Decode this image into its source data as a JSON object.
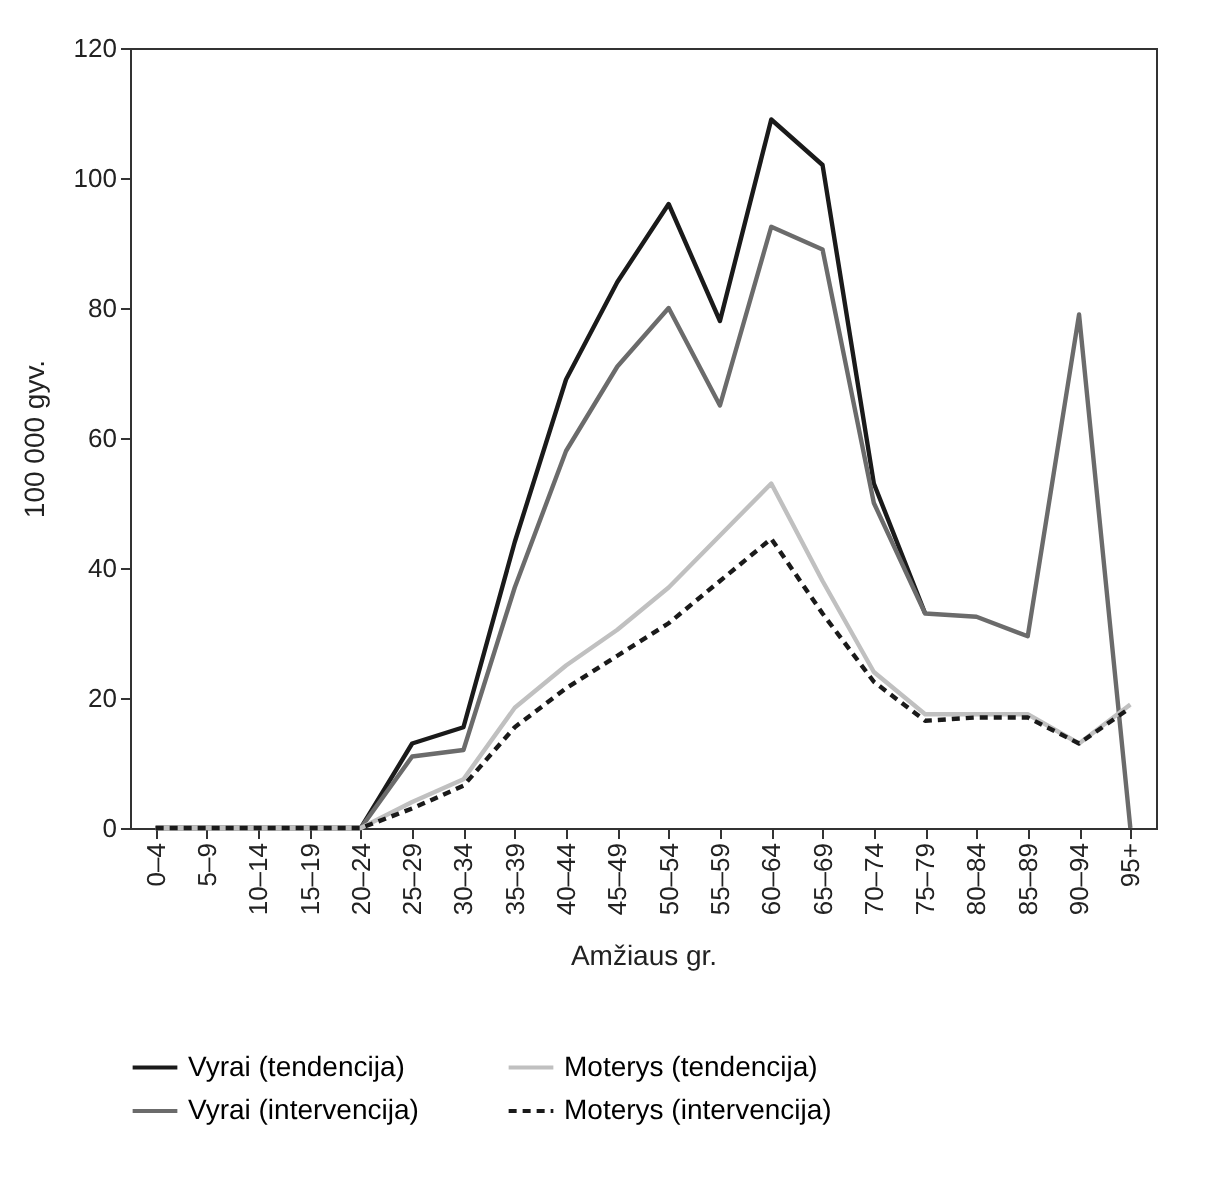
{
  "chart_data": {
    "type": "line",
    "xlabel": "Amžiaus gr.",
    "ylabel": "100 000 gyv.",
    "categories": [
      "0–4",
      "5–9",
      "10–14",
      "15–19",
      "20–24",
      "25–29",
      "30–34",
      "35–39",
      "40–44",
      "45–49",
      "50–54",
      "55–59",
      "60–64",
      "65–69",
      "70–74",
      "75–79",
      "80–84",
      "85–89",
      "90–94",
      "95+"
    ],
    "series": [
      {
        "name": "Vyrai (tendencija)",
        "color": "#1a1a1a",
        "line_style": "solid",
        "values": [
          0,
          0,
          0,
          0,
          0,
          13,
          15.5,
          44,
          69,
          84,
          96,
          78,
          109,
          102,
          53,
          33,
          null,
          null,
          null,
          null
        ]
      },
      {
        "name": "Vyrai (intervencija)",
        "color": "#6b6b6b",
        "line_style": "solid",
        "values": [
          0,
          0,
          0,
          0,
          0,
          11,
          12,
          37,
          58,
          71,
          80,
          65,
          92.5,
          89,
          50,
          33,
          32.5,
          29.5,
          79,
          0
        ]
      },
      {
        "name": "Moterys (tendencija)",
        "color": "#c0c0c0",
        "line_style": "solid",
        "values": [
          0,
          0,
          0,
          0,
          0,
          4,
          7.5,
          18.5,
          25,
          30.5,
          37,
          45,
          53,
          38,
          24,
          17.5,
          17.5,
          17.5,
          13,
          19
        ]
      },
      {
        "name": "Moterys (intervencija)",
        "color": "#1a1a1a",
        "line_style": "dashed",
        "values": [
          0,
          0,
          0,
          0,
          0,
          3,
          6.5,
          15.5,
          21.5,
          26.5,
          31.5,
          38,
          44.5,
          33,
          22.5,
          16.5,
          17,
          17,
          13,
          18.5
        ]
      }
    ],
    "ylim": [
      0,
      120
    ],
    "yticks": [
      0,
      20,
      40,
      60,
      80,
      100,
      120
    ],
    "grid": false,
    "legend": "bottom",
    "marker": "none"
  }
}
